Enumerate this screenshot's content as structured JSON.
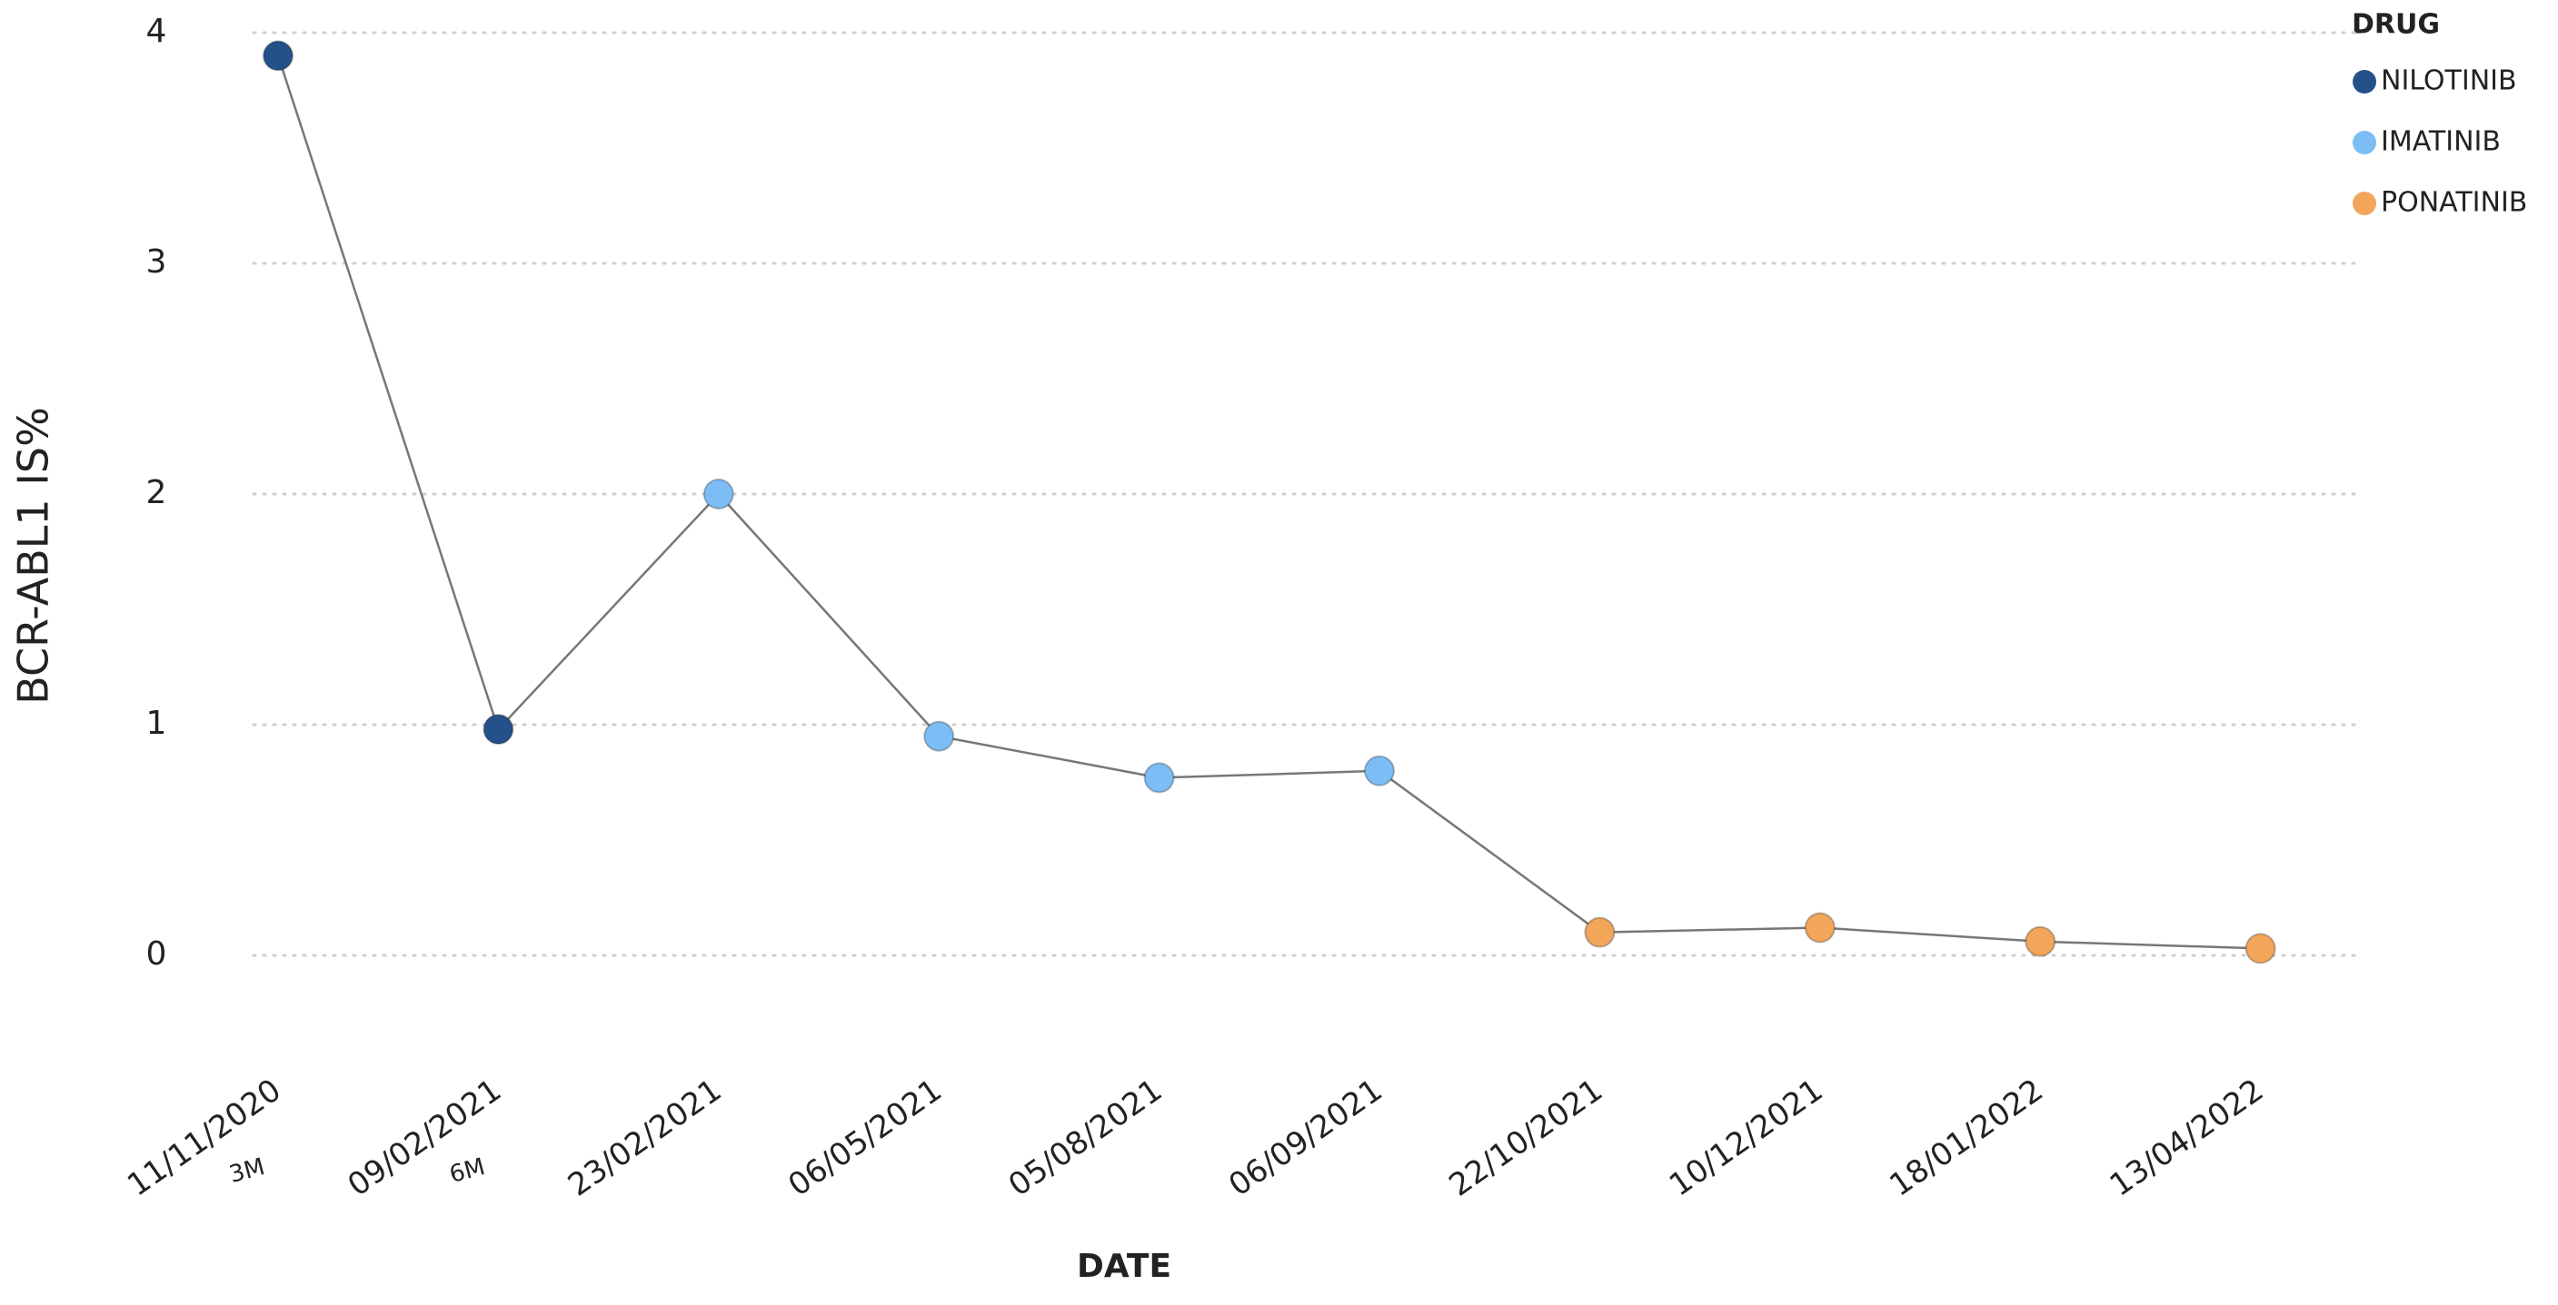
{
  "chart_data": {
    "type": "line",
    "y_label": "BCR-ABL1 IS%",
    "x_label": "DATE",
    "categories": [
      "11/11/2020",
      "09/02/2021",
      "23/02/2021",
      "06/05/2021",
      "05/08/2021",
      "06/09/2021",
      "22/10/2021",
      "10/12/2021",
      "18/01/2022",
      "13/04/2022"
    ],
    "sublabels": [
      "3M",
      "6M",
      null,
      null,
      null,
      null,
      null,
      null,
      null,
      null
    ],
    "values": [
      3.9,
      0.98,
      2.0,
      0.95,
      0.77,
      0.8,
      0.1,
      0.12,
      0.06,
      0.03
    ],
    "point_groups": [
      0,
      0,
      1,
      1,
      1,
      1,
      2,
      2,
      2,
      2
    ],
    "line_color": "#777777",
    "legend": {
      "title": "DRUG",
      "position": "top-right",
      "items": [
        {
          "name": "NILOTINIB",
          "color": "#25518a"
        },
        {
          "name": "IMATINIB",
          "color": "#7dbdf5"
        },
        {
          "name": "PONATINIB",
          "color": "#f2a65a"
        }
      ]
    },
    "ylim": [
      0,
      4
    ],
    "yticks": [
      0,
      1,
      2,
      3,
      4
    ],
    "grid": true
  }
}
